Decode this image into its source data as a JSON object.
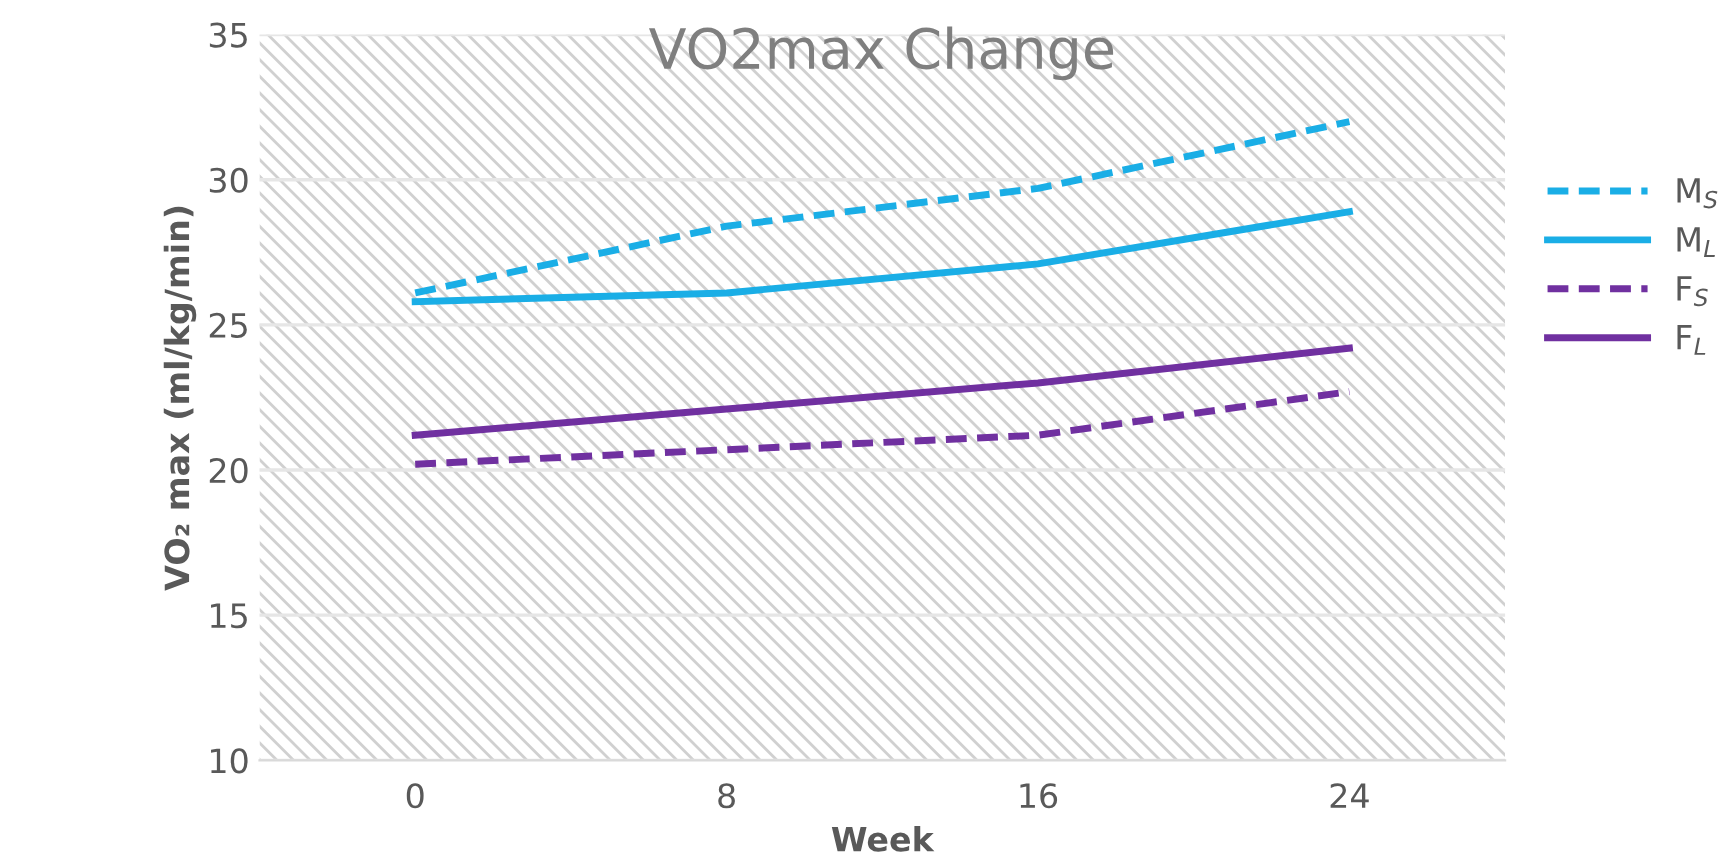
{
  "chart_data": {
    "type": "line",
    "title": "VO2max Change",
    "xlabel": "Week",
    "ylabel": "VO₂ max (ml/kg/min)",
    "categories": [
      "0",
      "8",
      "16",
      "24"
    ],
    "series": [
      {
        "name": "M$_{S}$",
        "color": "#1aaee6",
        "line_style": "dashed",
        "values": [
          26.1,
          28.4,
          29.7,
          32.0
        ]
      },
      {
        "name": "M$_{L}$",
        "color": "#1aaee6",
        "line_style": "solid",
        "values": [
          25.8,
          26.1,
          27.1,
          28.9
        ]
      },
      {
        "name": "F$_{S}$",
        "color": "#7030a0",
        "line_style": "dashed",
        "values": [
          20.2,
          20.7,
          21.2,
          22.7
        ]
      },
      {
        "name": "F$_{L}$",
        "color": "#7030a0",
        "line_style": "solid",
        "values": [
          21.2,
          22.1,
          23.0,
          24.2
        ]
      }
    ],
    "ylim": [
      10,
      35
    ],
    "yticks": [
      10,
      15,
      20,
      25,
      30,
      35
    ],
    "grid": "y",
    "legend": "right"
  }
}
